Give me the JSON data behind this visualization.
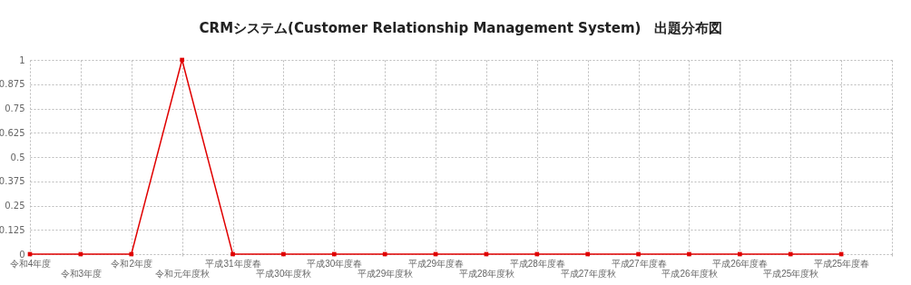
{
  "chart_data": {
    "type": "line",
    "title": "CRMシステム(Customer Relationship Management System)　出題分布図",
    "categories": [
      "令和4年度",
      "令和3年度",
      "令和2年度",
      "令和元年度秋",
      "平成31年度春",
      "平成30年度秋",
      "平成30年度春",
      "平成29年度秋",
      "平成29年度春",
      "平成28年度秋",
      "平成28年度春",
      "平成27年度秋",
      "平成27年度春",
      "平成26年度秋",
      "平成26年度春",
      "平成25年度秋",
      "平成25年度春",
      null
    ],
    "series": [
      {
        "color": "#e00000",
        "values": [
          0,
          0,
          0,
          1,
          0,
          0,
          0,
          0,
          0,
          0,
          0,
          0,
          0,
          0,
          0,
          0,
          0,
          null
        ]
      }
    ],
    "ylim": [
      0,
      1
    ],
    "yticks": [
      0,
      0.125,
      0.25,
      0.375,
      0.5,
      0.625,
      0.75,
      0.875,
      1
    ],
    "grid": true,
    "marker": "square",
    "line_style": "solid"
  }
}
